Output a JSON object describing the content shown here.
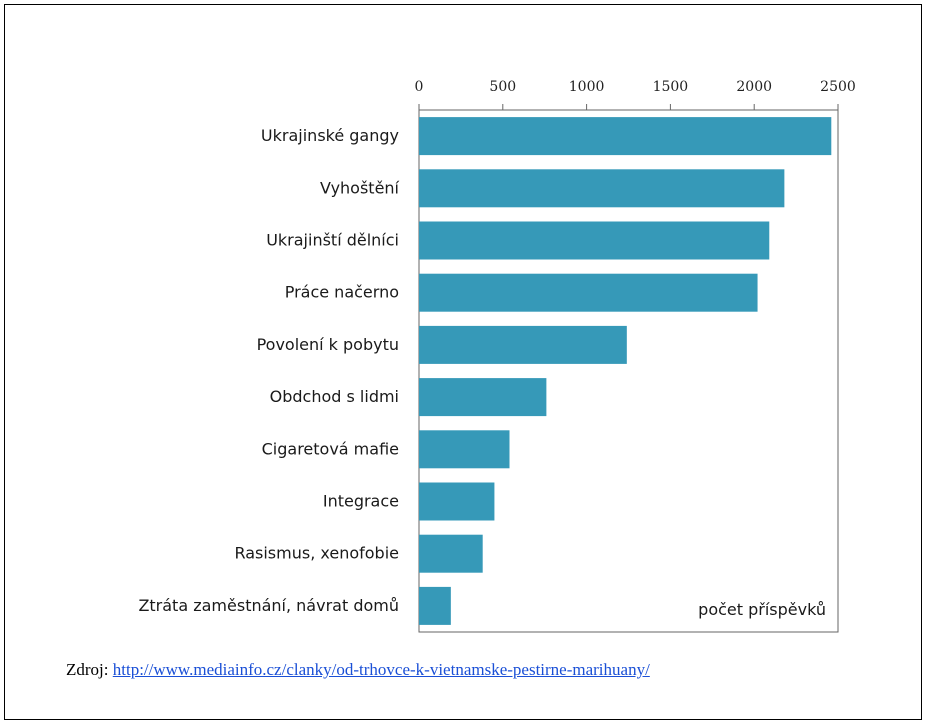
{
  "chart_data": {
    "type": "bar",
    "orientation": "horizontal",
    "categories": [
      "Ukrajinské gangy",
      "Vyhoštění",
      "Ukrajinští dělníci",
      "Práce načerno",
      "Povolení k pobytu",
      "Obdchod s lidmi",
      "Cigaretová mafie",
      "Integrace",
      "Rasismus, xenofobie",
      "Ztráta zaměstnání, návrat domů"
    ],
    "values": [
      2460,
      2180,
      2090,
      2020,
      1240,
      760,
      540,
      450,
      380,
      190
    ],
    "xlim": [
      0,
      2500
    ],
    "ticks": [
      0,
      500,
      1000,
      1500,
      2000,
      2500
    ],
    "xlabel": "počet příspěvků",
    "bar_color": "#3699b8",
    "grid": false
  },
  "source": {
    "label": "Zdroj:",
    "url": "http://www.mediainfo.cz/clanky/od-trhovce-k-vietnamske-pestirne-marihuany/"
  }
}
